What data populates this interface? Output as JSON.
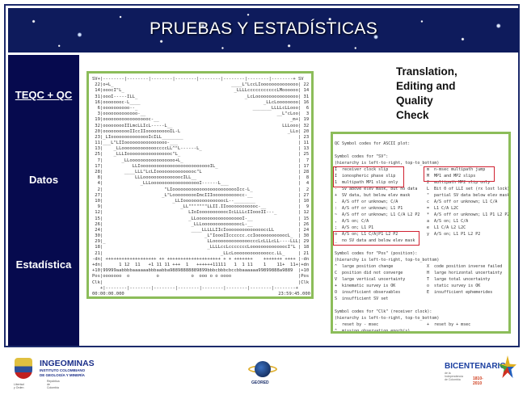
{
  "slide": {
    "title": "PRUEBAS Y ESTADÍSTICAS",
    "colors": {
      "header": "#0e1b5c",
      "sidebar": "#060a4e",
      "box_border": "#8cbd5a",
      "highlight": "#d02030"
    }
  },
  "sidebar": {
    "items": [
      {
        "label": "TEQC + QC"
      },
      {
        "label": "Datos"
      },
      {
        "label": "Estadística"
      }
    ]
  },
  "right_title": {
    "lines": [
      "Translation,",
      "Editing and",
      "Quality",
      "Check"
    ]
  },
  "plot": {
    "header": "SV+|--------|--------|--------|--------|--------|--------|--------|--------+ SV",
    "rows": [
      [
        "22",
        "o+L_",
        "____L\"LccLIoooooooooooooo"
      ],
      [
        "14",
        "ooocI\"L_",
        "_LLLLcccccccccccLMoooooo"
      ],
      [
        "31",
        "oooI-----ILL_",
        "_LcLoooooooooooooooo"
      ],
      [
        "16",
        "oooooooc-L____",
        "_LLcLoooooooo"
      ],
      [
        "6",
        "oooooooooo--_",
        "_______LLLLcLLooo"
      ],
      [
        "3",
        "ooooooooooooo-__",
        "__L\"cLoo"
      ],
      [
        "19",
        "oooooooooooooooooc-__",
        "_m+"
      ],
      [
        "32",
        "ooooooooIILmcLLIcL-----L__",
        "LLLooo"
      ],
      [
        "20",
        "ooooooooooIIccIIoooooooooIL-L",
        "_LLo"
      ],
      [
        "23",
        "_LIooooooooooooooIcILL________",
        ""
      ],
      [
        "11",
        "___L\"LIIoooooooooooooooo-___",
        ""
      ],
      [
        "13",
        "    _LLoooooooooooooccccLL^\"L------L_",
        ""
      ],
      [
        "25",
        "    _LLLIooooooooooooooooc\"L_",
        ""
      ],
      [
        "7",
        "       _LLooooooooooooooooo+L_",
        ""
      ],
      [
        "17",
        "           LLIooooooooooooooooooooooooooIL_",
        ""
      ],
      [
        "28",
        "        ____LLL\"LcLIooooooooooooooc\"L",
        ""
      ],
      [
        "8",
        "            LLLoooooooooooooocILL__",
        ""
      ],
      [
        "4",
        "              _LLLooooooooooooooooooI------L___",
        ""
      ],
      [
        "2",
        "                       \"LIooooooooooooooooooooooooIcc-L_",
        ""
      ],
      [
        "27",
        "                      _L\"LoooooooooImcIIIoooooooooocc-__",
        ""
      ],
      [
        "10",
        "                          _LLIooooooooooooooocL--________",
        ""
      ],
      [
        "9",
        "                             _LL\"\"\"\"\"\"\"LLII.IIoooooooooooc-__",
        ""
      ],
      [
        "12",
        "                                LIoIoooooooooocIcLLLLcIIoooII---_",
        ""
      ],
      [
        "15",
        "                                _LLoooooooooooooooooI-__",
        ""
      ],
      [
        "26",
        "                                 _LLLoooooooooooooocL-__",
        ""
      ],
      [
        "24",
        "                                 ____LLLLLIIcIooooooooooooooccLL",
        ""
      ],
      [
        "30",
        "                                      _L\"IoooIIcccccc.ccIooooooooooocL_",
        ""
      ],
      [
        "29",
        "_                                      LLoooooooooooooocccLcLLLcLL----L",
        "LL"
      ],
      [
        "18",
        "                                       _LLLLccLcccccccLooooooooooooocI\"L",
        ""
      ],
      [
        "21",
        "                                            _LLcLooooooooooooocc.LL_",
        ""
      ],
      [
        "-dn",
        " +++++++++++++++++++ ++ ++++++++++++++++++++ + + +++++++    +++++++ ++++",
        ""
      ],
      [
        "+dn",
        "      1 12  11   +1 11 11 +++  1   ++++++11111   1  1 11    1    11+  11+",
        ""
      ],
      [
        "+10",
        "99999aabbbbaaaaaabbbaabba98898888889899bbbcbbbcbccbbaaaaaa99899888a9889",
        ""
      ],
      [
        "Pos",
        "ooooooo  o          o            o  ooo o o oooo",
        ""
      ],
      [
        "Clk",
        "",
        ""
      ]
    ],
    "footer": "   +|--------|--------|--------|--------|--------|--------|--------|--------+",
    "time_start": "00:00:00.000",
    "time_end": "23:59:45.000"
  },
  "legend": {
    "lines": [
      [
        "QC Symbol codes for ASCII plot:",
        ""
      ],
      [
        "",
        ""
      ],
      [
        "Symbol codes for \"SV\":",
        ""
      ],
      [
        "(hierarchy is left-to-right, top-to_bottom)",
        ""
      ],
      [
        "I  receiver clock slip",
        "m  n-msec multipath jump"
      ],
      [
        "I  ionospheric phase slip",
        "M  MP1 and MP2 slips"
      ],
      [
        "1  multipath MP1 slip only",
        "2  multipath MP2 slip only"
      ],
      [
        "-  SV above elev mask, but no data",
        "L  Bit 0 of LLI set (rx lost lock)"
      ],
      [
        "+  SV data, but below elev mask",
        "\"  partial SV data below elev mask"
      ],
      [
        ".  A/S off or unknown; C/A",
        "c  A/S off or unknown; L1 C/A"
      ],
      [
        ":  A/S off or unknown; L1 P1",
        "=  L1 C/A L2C"
      ],
      [
        "~  A/S off or unknown; L1 C/A L2 P2",
        "*  A/S off or unknown; L1 P1 L2 P2"
      ],
      [
        ",  A/S on; C/A",
        "a  A/S on; L1 C/A"
      ],
      [
        ";  A/S on; L1 P1",
        "e  L1 C/A L2 L2C"
      ],
      [
        "o  A/S on; L1 C/A|P1 L2 P2",
        "y  A/S on; L1 P1 L2 P2"
      ],
      [
        "_  no SV data and below elev mask",
        ""
      ],
      [
        "",
        ""
      ],
      [
        "Symbol codes for \"Pos\" (position):",
        ""
      ],
      [
        "(hierarchy is left-to-right, top-to_bottom)",
        ""
      ],
      [
        "^  large position change",
        "X  code position inverse failed"
      ],
      [
        "C  position did not converge",
        "H  large horizontal uncertainty"
      ],
      [
        "V  large vertical uncertainty",
        "T  large total uncertainty"
      ],
      [
        "+  kinematic survey is OK",
        "o  static survey is OK"
      ],
      [
        "O  insufficient observables",
        "E  insufficient ephemerides"
      ],
      [
        "S  insufficient SV set",
        ""
      ],
      [
        "",
        ""
      ],
      [
        "Symbol codes for \"Clk\" (receiver clock):",
        ""
      ],
      [
        "(hierarchy is left-to-right, top-to_bottom)",
        ""
      ],
      [
        "-  reset by - msec",
        "+  reset by + msec"
      ],
      [
        "^  missing observation epoch(s)",
        ""
      ]
    ]
  },
  "logos": {
    "ingeominas": {
      "name": "INGEOMINAS",
      "subtitle": "INSTITUTO COLOMBIANO DE GEOLOGÍA Y MINERÍA",
      "country": "República de Colombia",
      "motto": "Libertad y Orden"
    },
    "geored": {
      "name": "GEORED"
    },
    "bicentenario": {
      "name": "BICENTENARIO",
      "subtitle": "de la Independencia de Colombia",
      "years": "1810-2010"
    }
  }
}
